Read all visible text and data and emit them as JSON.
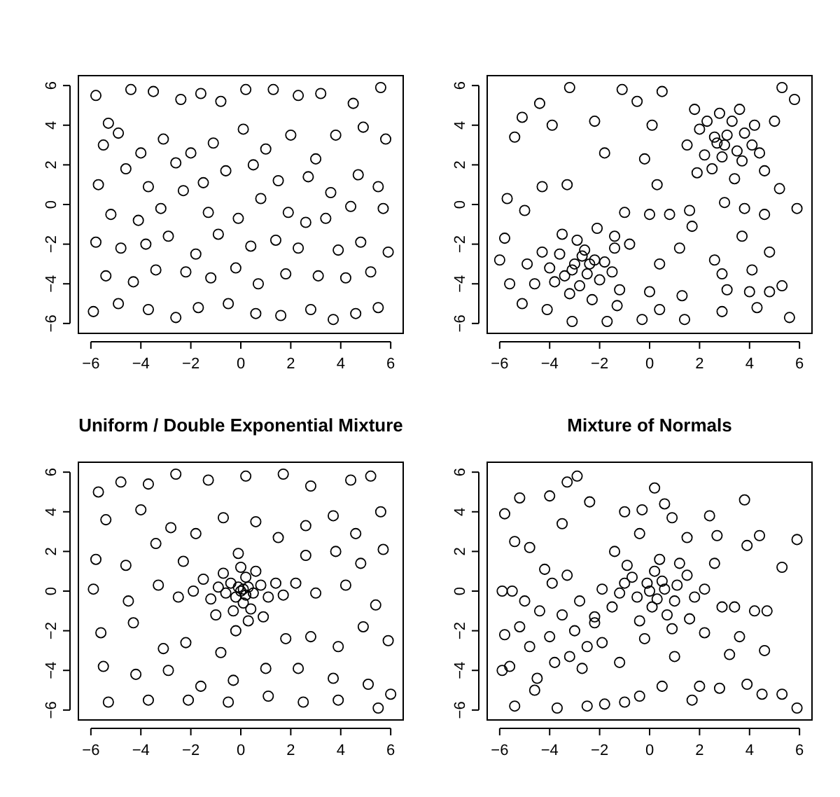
{
  "chart_data": [
    {
      "type": "scatter",
      "color": "#000000",
      "marker": "circle",
      "xlim": [
        -6.5,
        6.5
      ],
      "ylim": [
        -6.5,
        6.5
      ],
      "xticks": [
        -6,
        -4,
        -2,
        0,
        2,
        4,
        6
      ],
      "yticks": [
        -6,
        -4,
        -2,
        0,
        2,
        4,
        6
      ],
      "x": [
        -5.8,
        -5.3,
        -4.4,
        -3.5,
        -2.4,
        -1.6,
        -0.8,
        0.2,
        1.3,
        2.3,
        3.2,
        4.5,
        5.6,
        -5.5,
        -4.9,
        -4.0,
        -3.1,
        -2.0,
        -1.1,
        0.1,
        1.0,
        2.0,
        3.0,
        3.8,
        4.9,
        5.8,
        -5.7,
        -4.6,
        -3.7,
        -2.6,
        -1.5,
        -0.6,
        0.5,
        1.5,
        2.7,
        3.6,
        4.7,
        5.5,
        -5.2,
        -4.1,
        -3.2,
        -2.3,
        -1.3,
        -0.1,
        0.8,
        1.9,
        2.6,
        3.4,
        4.4,
        5.7,
        -5.8,
        -4.8,
        -3.8,
        -2.9,
        -1.8,
        -0.9,
        0.4,
        1.4,
        2.3,
        3.9,
        4.8,
        5.9,
        -5.4,
        -4.3,
        -3.4,
        -2.2,
        -1.2,
        -0.2,
        0.7,
        1.8,
        3.1,
        4.2,
        5.2,
        -5.9,
        -4.9,
        -3.7,
        -2.6,
        -1.7,
        -0.5,
        0.6,
        1.6,
        2.8,
        3.7,
        4.6,
        5.5
      ],
      "values": [
        5.5,
        4.1,
        5.8,
        5.7,
        5.3,
        5.6,
        5.2,
        5.8,
        5.8,
        5.5,
        5.6,
        5.1,
        5.9,
        3.0,
        3.6,
        2.6,
        3.3,
        2.6,
        3.1,
        3.8,
        2.8,
        3.5,
        2.3,
        3.5,
        3.9,
        3.3,
        1.0,
        1.8,
        0.9,
        2.1,
        1.1,
        1.7,
        2.0,
        1.2,
        1.4,
        0.6,
        1.5,
        0.9,
        -0.5,
        -0.8,
        -0.2,
        0.7,
        -0.4,
        -0.7,
        0.3,
        -0.4,
        -0.9,
        -0.7,
        -0.1,
        -0.2,
        -1.9,
        -2.2,
        -2.0,
        -1.6,
        -2.5,
        -1.5,
        -2.1,
        -1.8,
        -2.2,
        -2.3,
        -1.9,
        -2.4,
        -3.6,
        -3.9,
        -3.3,
        -3.4,
        -3.7,
        -3.2,
        -4.0,
        -3.5,
        -3.6,
        -3.7,
        -3.4,
        -5.4,
        -5.0,
        -5.3,
        -5.7,
        -5.2,
        -5.0,
        -5.5,
        -5.6,
        -5.3,
        -5.8,
        -5.5,
        -5.2
      ]
    },
    {
      "type": "scatter",
      "color": "#000000",
      "marker": "circle",
      "xlim": [
        -6.5,
        6.5
      ],
      "ylim": [
        -6.5,
        6.5
      ],
      "xticks": [
        -6,
        -4,
        -2,
        0,
        2,
        4,
        6
      ],
      "yticks": [
        -6,
        -4,
        -2,
        0,
        2,
        4,
        6
      ],
      "x": [
        -3.0,
        -2.5,
        -2.2,
        -3.4,
        -2.8,
        -2.0,
        -3.6,
        -2.6,
        -1.8,
        -3.2,
        -2.3,
        -4.0,
        -3.8,
        -1.5,
        -2.9,
        -4.3,
        -1.4,
        -3.1,
        -2.4,
        -2.7,
        -4.6,
        -1.2,
        -3.5,
        -2.1,
        -4.9,
        3.0,
        3.5,
        2.6,
        3.8,
        2.2,
        3.3,
        4.1,
        2.8,
        2.0,
        3.7,
        2.5,
        4.4,
        1.8,
        3.1,
        2.9,
        4.2,
        1.5,
        3.6,
        2.3,
        4.6,
        1.9,
        3.4,
        2.7,
        -5.7,
        -5.0,
        -4.3,
        -3.3,
        -3.9,
        -3.2,
        -2.2,
        -1.8,
        -1.1,
        -0.5,
        0.5,
        -0.2,
        0.3,
        -5.4,
        -5.1,
        -4.4,
        0.1,
        -1.0,
        0.0,
        0.8,
        1.6,
        3.0,
        3.8,
        4.6,
        5.2,
        5.9,
        5.3,
        5.8,
        5.0,
        1.7,
        3.7,
        4.8,
        4.1,
        2.6,
        1.2,
        0.4,
        0.0,
        1.3,
        2.9,
        3.1,
        4.0,
        4.8,
        5.3,
        5.6,
        4.3,
        2.9,
        1.4,
        0.4,
        -0.3,
        -1.3,
        -1.7,
        -3.1,
        -4.1,
        -5.1,
        -5.6,
        -6.0,
        -5.8,
        -0.8,
        -1.4
      ],
      "values": [
        -3.0,
        -3.5,
        -2.8,
        -3.6,
        -4.1,
        -3.8,
        -2.5,
        -2.3,
        -2.9,
        -4.5,
        -4.8,
        -3.2,
        -3.9,
        -3.4,
        -1.8,
        -2.4,
        -2.2,
        -3.3,
        -3.0,
        -2.6,
        -4.0,
        -4.3,
        -1.5,
        -1.2,
        -3.0,
        3.0,
        2.7,
        3.4,
        3.6,
        2.5,
        4.2,
        3.0,
        4.6,
        3.8,
        2.2,
        1.8,
        2.6,
        4.8,
        3.5,
        2.4,
        4.0,
        3.0,
        4.8,
        4.2,
        1.7,
        1.6,
        1.3,
        3.1,
        0.3,
        -0.3,
        0.9,
        1.0,
        4.0,
        5.9,
        4.2,
        2.6,
        5.8,
        5.2,
        5.7,
        2.3,
        1.0,
        3.4,
        4.4,
        5.1,
        4.0,
        -0.4,
        -0.5,
        -0.5,
        -0.3,
        0.1,
        -0.2,
        -0.5,
        0.8,
        -0.2,
        5.9,
        5.3,
        4.2,
        -1.1,
        -1.6,
        -2.4,
        -3.3,
        -2.8,
        -2.2,
        -3.0,
        -4.4,
        -4.6,
        -3.5,
        -4.3,
        -4.4,
        -4.4,
        -4.1,
        -5.7,
        -5.2,
        -5.4,
        -5.8,
        -5.3,
        -5.8,
        -5.1,
        -5.9,
        -5.9,
        -5.3,
        -5.0,
        -4.0,
        -2.8,
        -1.7,
        -2.0,
        -1.6
      ]
    },
    {
      "type": "scatter",
      "title": "Uniform / Double Exponential Mixture",
      "color": "#000000",
      "marker": "circle",
      "xlim": [
        -6.5,
        6.5
      ],
      "ylim": [
        -6.5,
        6.5
      ],
      "xticks": [
        -6,
        -4,
        -2,
        0,
        2,
        4,
        6
      ],
      "yticks": [
        -6,
        -4,
        -2,
        0,
        2,
        4,
        6
      ],
      "x": [
        0,
        0.3,
        -0.2,
        0.5,
        -0.4,
        0.1,
        -0.6,
        0.2,
        0.8,
        -0.9,
        0.4,
        -0.3,
        1.1,
        -1.2,
        0.0,
        0.6,
        -0.7,
        1.4,
        -1.5,
        0.3,
        -0.1,
        1.7,
        -0.2,
        -1.9,
        2.2,
        0.9,
        -1.0,
        0.1,
        -0.1,
        0.2,
        -5.7,
        -4.8,
        -3.7,
        -2.6,
        -1.3,
        0.2,
        1.7,
        2.8,
        4.4,
        5.2,
        -5.4,
        -4.0,
        -2.8,
        -1.8,
        -0.7,
        0.6,
        1.5,
        2.6,
        3.7,
        4.6,
        5.6,
        -5.8,
        -4.6,
        -3.4,
        -2.3,
        2.6,
        3.8,
        4.8,
        5.7,
        -5.9,
        -4.5,
        -3.3,
        -2.5,
        3.0,
        4.2,
        5.4,
        -5.6,
        -4.3,
        -3.1,
        -2.2,
        -0.8,
        1.8,
        2.8,
        3.9,
        4.9,
        5.9,
        -5.5,
        -4.2,
        -2.9,
        -1.6,
        -0.3,
        1.0,
        2.3,
        3.7,
        5.1,
        -5.3,
        -3.7,
        -2.1,
        -0.5,
        1.1,
        2.5,
        3.9,
        5.5,
        6.0
      ],
      "values": [
        0,
        0.2,
        -0.3,
        -0.1,
        0.4,
        -0.6,
        -0.1,
        0.7,
        0.3,
        0.2,
        -0.9,
        -1.0,
        -0.3,
        -0.4,
        1.2,
        1.0,
        0.9,
        0.4,
        0.6,
        -1.5,
        1.9,
        -0.2,
        -2.0,
        0.0,
        0.4,
        -1.3,
        -1.2,
        0.1,
        0.2,
        -0.2,
        5.0,
        5.5,
        5.4,
        5.9,
        5.6,
        5.8,
        5.9,
        5.3,
        5.6,
        5.8,
        3.6,
        4.1,
        3.2,
        2.9,
        3.7,
        3.5,
        2.7,
        3.3,
        3.8,
        2.9,
        4.0,
        1.6,
        1.3,
        2.4,
        1.5,
        1.8,
        2.0,
        1.4,
        2.1,
        0.1,
        -0.5,
        0.3,
        -0.3,
        -0.1,
        0.3,
        -0.7,
        -2.1,
        -1.6,
        -2.9,
        -2.6,
        -3.1,
        -2.4,
        -2.3,
        -2.8,
        -1.8,
        -2.5,
        -3.8,
        -4.2,
        -4.0,
        -4.8,
        -4.5,
        -3.9,
        -3.9,
        -4.4,
        -4.7,
        -5.6,
        -5.5,
        -5.5,
        -5.6,
        -5.3,
        -5.6,
        -5.5,
        -5.9,
        -5.2
      ]
    },
    {
      "type": "scatter",
      "title": "Mixture of Normals",
      "color": "#000000",
      "marker": "circle",
      "xlim": [
        -6.5,
        6.5
      ],
      "ylim": [
        -6.5,
        6.5
      ],
      "xticks": [
        -6,
        -4,
        -2,
        0,
        2,
        4,
        6
      ],
      "yticks": [
        -6,
        -4,
        -2,
        0,
        2,
        4,
        6
      ],
      "x": [
        0,
        0.5,
        -0.5,
        1.0,
        0.2,
        -1.0,
        0.7,
        -0.4,
        1.5,
        -1.5,
        1.8,
        0.4,
        -0.9,
        1.2,
        -1.9,
        0.9,
        -0.2,
        2.2,
        -2.2,
        1.6,
        0.1,
        -0.7,
        0.6,
        -1.2,
        0.3,
        1.1,
        -0.1,
        2.6,
        2.9,
        -1.4,
        -3.0,
        -3.5,
        -2.5,
        -4.0,
        -3.2,
        -2.2,
        -4.4,
        -3.8,
        -2.8,
        -4.8,
        -5.2,
        -3.3,
        -4.5,
        -5.6,
        -2.7,
        -3.9,
        -5.0,
        -5.5,
        -4.2,
        -1.9,
        -5.8,
        -5.2,
        -4.0,
        -3.3,
        -2.9,
        -3.5,
        -4.8,
        -5.4,
        -2.4,
        -1.0,
        -0.3,
        0.2,
        0.6,
        0.9,
        -0.4,
        1.5,
        2.4,
        2.7,
        3.8,
        3.9,
        4.4,
        5.9,
        5.3,
        4.7,
        4.2,
        3.4,
        3.6,
        4.6,
        3.9,
        4.5,
        5.3,
        5.9,
        2.8,
        2.0,
        1.7,
        0.5,
        -0.4,
        -1.0,
        -1.8,
        -2.5,
        -3.7,
        -4.6,
        -5.4,
        -5.9,
        -5.9,
        -5.8,
        2.2,
        1.0,
        -1.2,
        3.2
      ],
      "values": [
        0,
        0.5,
        -0.3,
        -0.5,
        1.0,
        0.4,
        -1.2,
        -1.5,
        0.8,
        -0.8,
        -0.3,
        1.6,
        1.3,
        1.4,
        0.1,
        -1.9,
        -2.4,
        0.1,
        -1.3,
        -1.4,
        -0.8,
        0.7,
        0.1,
        -0.1,
        -0.4,
        0.3,
        0.4,
        1.4,
        -0.8,
        2.0,
        -2.0,
        -1.2,
        -2.8,
        -2.3,
        -3.3,
        -1.6,
        -1.0,
        -3.6,
        -0.5,
        -2.8,
        -1.8,
        0.8,
        -4.4,
        -3.8,
        -3.9,
        0.4,
        -0.5,
        0.0,
        1.1,
        -2.6,
        3.9,
        4.7,
        4.8,
        5.5,
        5.8,
        3.4,
        2.2,
        2.5,
        4.5,
        4.0,
        4.1,
        5.2,
        4.4,
        3.7,
        2.9,
        2.7,
        3.8,
        2.8,
        4.6,
        2.3,
        2.8,
        2.6,
        1.2,
        -1.0,
        -1.0,
        -0.8,
        -2.3,
        -3.0,
        -4.7,
        -5.2,
        -5.2,
        -5.9,
        -4.9,
        -4.8,
        -5.5,
        -4.8,
        -5.3,
        -5.6,
        -5.7,
        -5.8,
        -5.9,
        -5.0,
        -5.8,
        -4.0,
        0.0,
        -2.2,
        -2.1,
        -3.3,
        -3.6,
        -3.2
      ]
    }
  ]
}
